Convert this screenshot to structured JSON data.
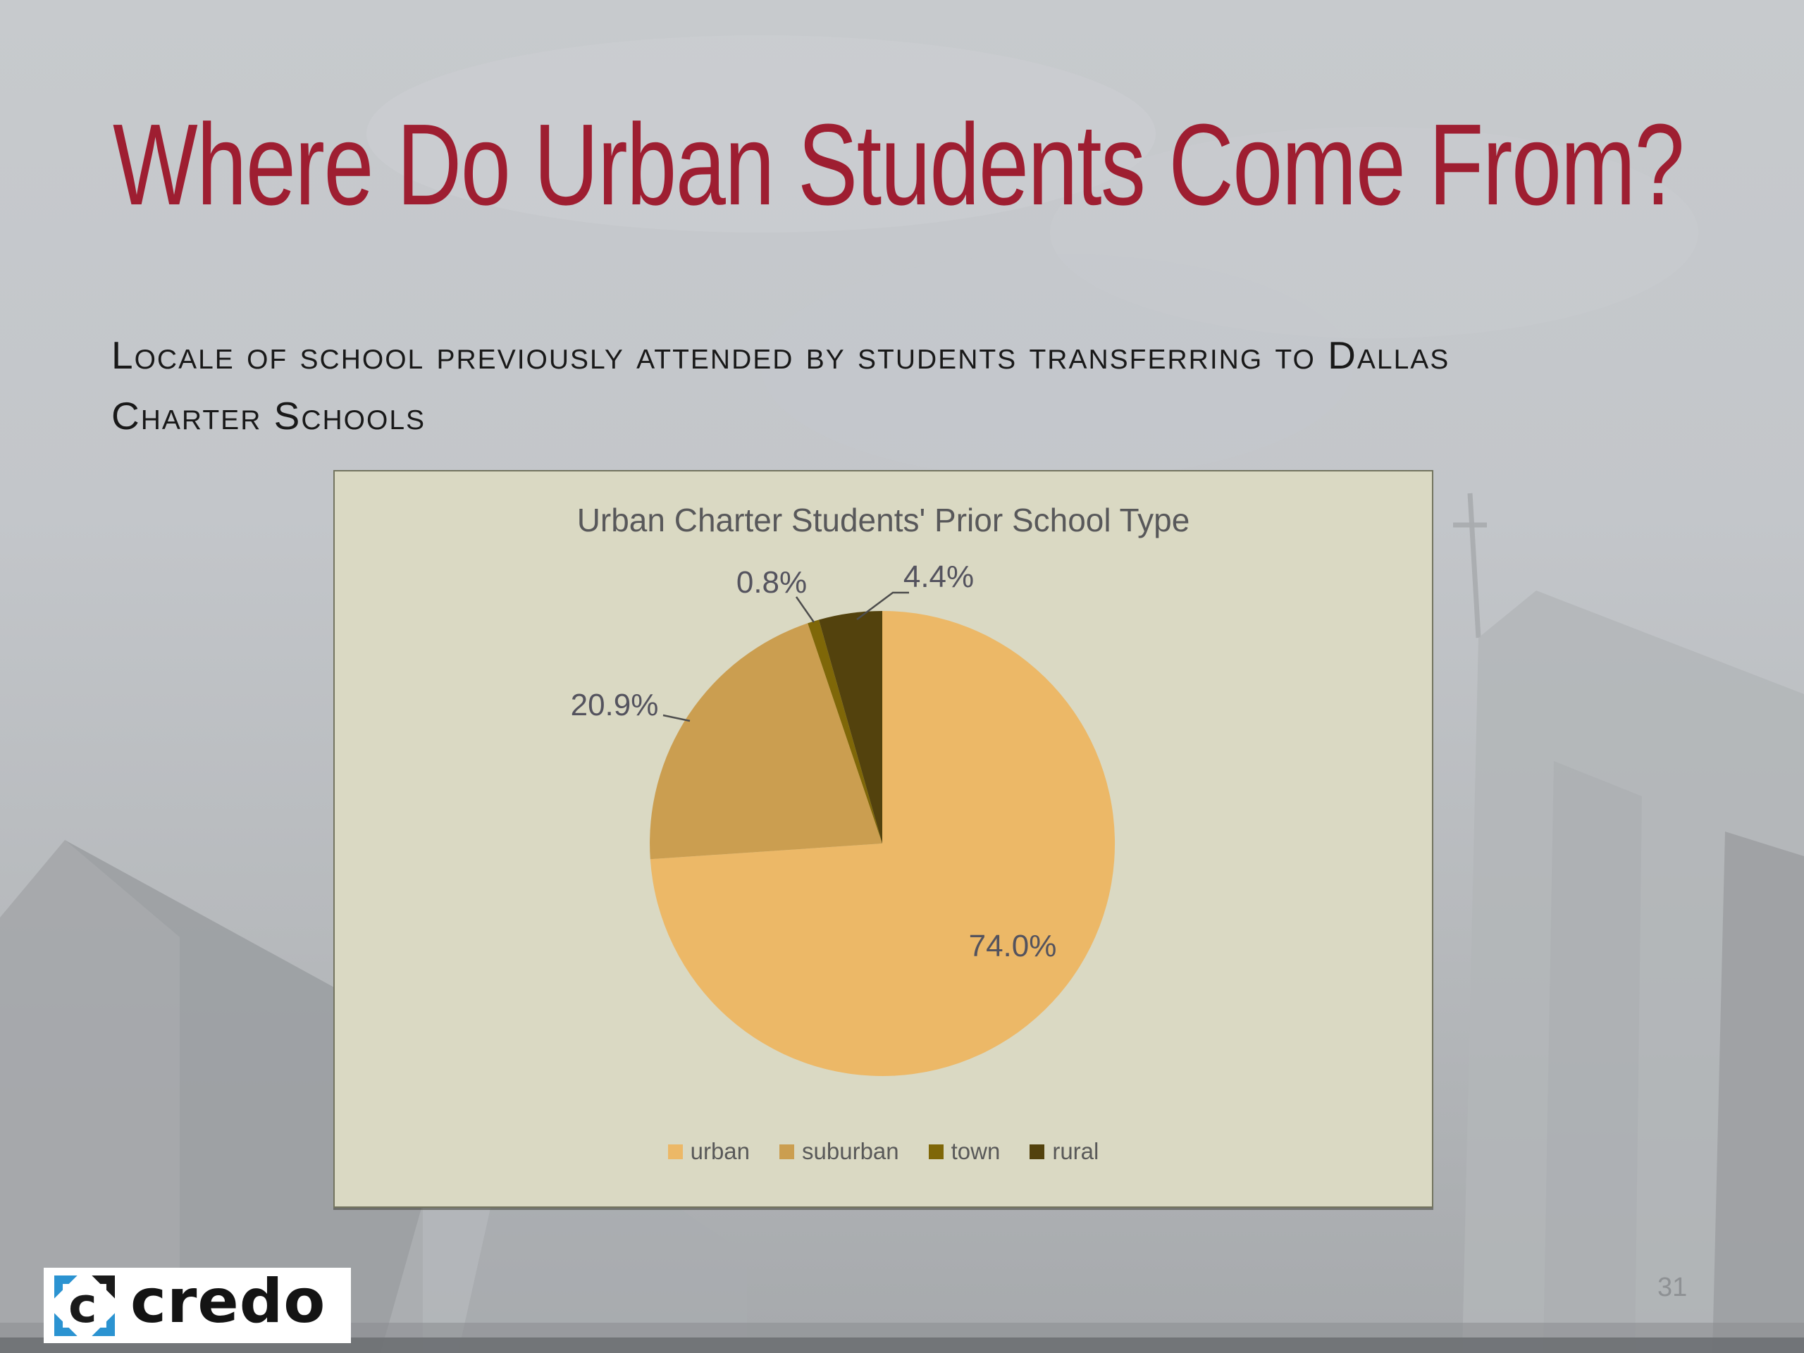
{
  "slide": {
    "title": "Where Do Urban Students Come From?",
    "subtitle_line1": "Locale of school previously attended by students transferring to Dallas",
    "subtitle_line2": "Charter Schools",
    "page_number": "31",
    "logo_text": "credo",
    "colors": {
      "title_red": "#9E1E31",
      "background_gray": "#C3C6CA",
      "logo_blue": "#2B93D1"
    }
  },
  "chart_data": {
    "type": "pie",
    "title": "Urban Charter Students' Prior School Type",
    "categories": [
      "urban",
      "suburban",
      "town",
      "rural"
    ],
    "values": [
      74.0,
      20.9,
      0.8,
      4.4
    ],
    "data_labels": [
      "74.0%",
      "20.9%",
      "0.8%",
      "4.4%"
    ],
    "unit": "%",
    "colors": [
      "#ECB867",
      "#CB9E50",
      "#7F6708",
      "#53420D"
    ],
    "start_angle_deg": 0,
    "direction": "clockwise",
    "legend_position": "bottom",
    "plot_background": "#DAD9C3",
    "label_color": "#54535E"
  }
}
